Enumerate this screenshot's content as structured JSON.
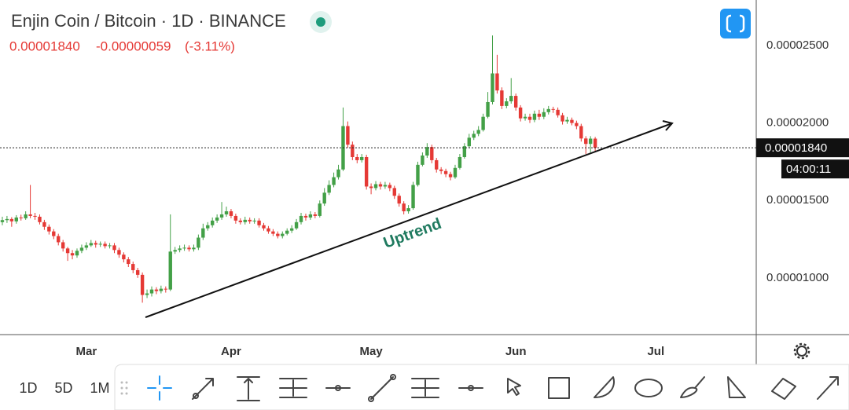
{
  "header": {
    "title": "Enjin Coin / Bitcoin · 1D · BINANCE",
    "price": "0.00001840",
    "change": "-0.00000059",
    "change_pct": "(-3.11%)"
  },
  "toolbar": {
    "intervals": [
      "1D",
      "5D",
      "1M"
    ]
  },
  "chart_data": {
    "type": "candlestick",
    "categories": [
      null,
      null,
      null,
      null,
      null,
      null,
      null,
      null,
      null,
      null,
      null,
      null,
      null,
      null,
      null,
      null,
      null,
      null,
      "Mar",
      null,
      null,
      null,
      null,
      null,
      null,
      null,
      null,
      null,
      null,
      null,
      null,
      null,
      null,
      null,
      null,
      null,
      null,
      null,
      null,
      null,
      null,
      null,
      null,
      null,
      null,
      null,
      null,
      null,
      null,
      "Apr",
      null,
      null,
      null,
      null,
      null,
      null,
      null,
      null,
      null,
      null,
      null,
      null,
      null,
      null,
      null,
      null,
      null,
      null,
      null,
      null,
      null,
      null,
      null,
      null,
      null,
      null,
      null,
      null,
      null,
      "May",
      null,
      null,
      null,
      null,
      null,
      null,
      null,
      null,
      null,
      null,
      null,
      null,
      null,
      null,
      null,
      null,
      null,
      null,
      null,
      null,
      null,
      null,
      null,
      null,
      null,
      null,
      null,
      null,
      null,
      null,
      "Jun",
      null,
      null,
      null,
      null,
      null,
      null,
      null,
      null,
      null,
      null,
      null,
      null,
      null,
      null,
      null,
      null,
      null,
      null,
      null,
      null,
      null,
      null,
      null,
      null,
      null,
      null,
      null,
      null,
      null,
      "Jul",
      null,
      null,
      null,
      null,
      null,
      null,
      null,
      null,
      null,
      null,
      null,
      null,
      null,
      null,
      null,
      null,
      null,
      null,
      null,
      null,
      null
    ],
    "open": [
      1.36e-05,
      1.373e-05,
      1.38e-05,
      1.365e-05,
      1.39e-05,
      1.385e-05,
      1.41e-05,
      1.4e-05,
      1.395e-05,
      1.36e-05,
      1.33e-05,
      1.3e-05,
      1.27e-05,
      1.23e-05,
      1.19e-05,
      1.16e-05,
      1.145e-05,
      1.175e-05,
      1.195e-05,
      1.21e-05,
      1.225e-05,
      1.215e-05,
      1.22e-05,
      1.205e-05,
      1.21e-05,
      1.18e-05,
      1.15e-05,
      1.12e-05,
      1.09e-05,
      1.05e-05,
      1.02e-05,
      8.9e-06,
      9e-06,
      9.25e-06,
      9.15e-06,
      9.3e-06,
      9.25e-06,
      1.17e-05,
      1.18e-05,
      1.19e-05,
      1.195e-05,
      1.185e-05,
      1.195e-05,
      1.26e-05,
      1.32e-05,
      1.34e-05,
      1.37e-05,
      1.39e-05,
      1.41e-05,
      1.43e-05,
      1.4e-05,
      1.37e-05,
      1.36e-05,
      1.375e-05,
      1.365e-05,
      1.37e-05,
      1.34e-05,
      1.32e-05,
      1.3e-05,
      1.285e-05,
      1.27e-05,
      1.285e-05,
      1.305e-05,
      1.32e-05,
      1.36e-05,
      1.4e-05,
      1.39e-05,
      1.41e-05,
      1.4e-05,
      1.48e-05,
      1.55e-05,
      1.6e-05,
      1.65e-05,
      1.7e-05,
      1.98e-05,
      1.86e-05,
      1.78e-05,
      1.76e-05,
      1.78e-05,
      1.59e-05,
      1.58e-05,
      1.605e-05,
      1.59e-05,
      1.6e-05,
      1.58e-05,
      1.53e-05,
      1.48e-05,
      1.43e-05,
      1.45e-05,
      1.6e-05,
      1.73e-05,
      1.79e-05,
      1.845e-05,
      1.76e-05,
      1.7e-05,
      1.69e-05,
      1.67e-05,
      1.65e-05,
      1.71e-05,
      1.78e-05,
      1.85e-05,
      1.905e-05,
      1.93e-05,
      1.955e-05,
      2.04e-05,
      2.135e-05,
      2.32e-05,
      2.21e-05,
      2.11e-05,
      2.14e-05,
      2.175e-05,
      2.1e-05,
      2.03e-05,
      2.04e-05,
      2.02e-05,
      2.06e-05,
      2.04e-05,
      2.07e-05,
      2.09e-05,
      2.085e-05,
      2.05e-05,
      2.01e-05,
      2.02e-05,
      2e-05,
      1.98e-05,
      1.9e-05,
      1.865e-05,
      1.899e-05,
      null,
      null,
      null,
      null,
      null,
      null,
      null,
      null,
      null,
      null,
      null,
      null,
      null,
      null,
      null,
      null,
      null,
      null,
      null,
      null,
      null,
      null,
      null,
      null,
      null,
      null,
      null,
      null,
      null,
      null,
      null,
      null,
      null,
      null
    ],
    "high": [
      1.395e-05,
      1.4e-05,
      1.392e-05,
      1.405e-05,
      1.408e-05,
      1.43e-05,
      1.6e-05,
      1.42e-05,
      1.41e-05,
      1.375e-05,
      1.345e-05,
      1.315e-05,
      1.285e-05,
      1.245e-05,
      1.2e-05,
      1.18e-05,
      1.19e-05,
      1.215e-05,
      1.23e-05,
      1.245e-05,
      1.24e-05,
      1.235e-05,
      1.235e-05,
      1.225e-05,
      1.225e-05,
      1.195e-05,
      1.165e-05,
      1.135e-05,
      1.105e-05,
      1.065e-05,
      1.035e-05,
      9.25e-06,
      9.45e-06,
      9.4e-06,
      9.5e-06,
      9.45e-06,
      1.41e-05,
      1.2e-05,
      1.21e-05,
      1.215e-05,
      1.21e-05,
      1.215e-05,
      1.28e-05,
      1.35e-05,
      1.36e-05,
      1.39e-05,
      1.41e-05,
      1.49e-05,
      1.46e-05,
      1.445e-05,
      1.415e-05,
      1.385e-05,
      1.395e-05,
      1.39e-05,
      1.385e-05,
      1.385e-05,
      1.355e-05,
      1.335e-05,
      1.315e-05,
      1.3e-05,
      1.3e-05,
      1.32e-05,
      1.34e-05,
      1.38e-05,
      1.42e-05,
      1.415e-05,
      1.43e-05,
      1.425e-05,
      1.5e-05,
      1.58e-05,
      1.63e-05,
      1.68e-05,
      1.73e-05,
      2.1e-05,
      2.01e-05,
      1.88e-05,
      1.8e-05,
      1.8e-05,
      1.795e-05,
      1.61e-05,
      1.625e-05,
      1.62e-05,
      1.62e-05,
      1.615e-05,
      1.595e-05,
      1.545e-05,
      1.495e-05,
      1.47e-05,
      1.62e-05,
      1.75e-05,
      1.81e-05,
      1.87e-05,
      1.86e-05,
      1.775e-05,
      1.715e-05,
      1.705e-05,
      1.685e-05,
      1.73e-05,
      1.8e-05,
      1.87e-05,
      1.93e-05,
      1.95e-05,
      1.98e-05,
      2.06e-05,
      2.2e-05,
      2.565e-05,
      2.44e-05,
      2.23e-05,
      2.16e-05,
      2.29e-05,
      2.19e-05,
      2.115e-05,
      2.06e-05,
      2.06e-05,
      2.08e-05,
      2.085e-05,
      2.095e-05,
      2.11e-05,
      2.105e-05,
      2.1e-05,
      2.065e-05,
      2.04e-05,
      2.035e-05,
      2.015e-05,
      1.995e-05,
      1.915e-05,
      1.915e-05,
      1.91e-05,
      null,
      null,
      null,
      null,
      null,
      null,
      null,
      null,
      null,
      null,
      null,
      null,
      null,
      null,
      null,
      null,
      null,
      null,
      null,
      null,
      null,
      null,
      null,
      null,
      null,
      null,
      null,
      null,
      null,
      null,
      null,
      null,
      null,
      null
    ],
    "low": [
      1.34e-05,
      1.355e-05,
      1.33e-05,
      1.35e-05,
      1.37e-05,
      1.375e-05,
      1.385e-05,
      1.375e-05,
      1.345e-05,
      1.31e-05,
      1.28e-05,
      1.25e-05,
      1.21e-05,
      1.17e-05,
      1.11e-05,
      1.12e-05,
      1.13e-05,
      1.16e-05,
      1.18e-05,
      1.2e-05,
      1.195e-05,
      1.2e-05,
      1.19e-05,
      1.19e-05,
      1.16e-05,
      1.13e-05,
      1.1e-05,
      1.07e-05,
      1.03e-05,
      1e-05,
      8.4e-06,
      8.7e-06,
      8.8e-06,
      8.95e-06,
      9e-06,
      9.05e-06,
      9.15e-06,
      1.155e-05,
      1.165e-05,
      1.175e-05,
      1.17e-05,
      1.17e-05,
      1.18e-05,
      1.245e-05,
      1.305e-05,
      1.325e-05,
      1.355e-05,
      1.375e-05,
      1.395e-05,
      1.385e-05,
      1.35e-05,
      1.345e-05,
      1.345e-05,
      1.35e-05,
      1.35e-05,
      1.325e-05,
      1.305e-05,
      1.285e-05,
      1.27e-05,
      1.255e-05,
      1.255e-05,
      1.275e-05,
      1.29e-05,
      1.31e-05,
      1.345e-05,
      1.37e-05,
      1.375e-05,
      1.385e-05,
      1.39e-05,
      1.465e-05,
      1.535e-05,
      1.585e-05,
      1.635e-05,
      1.69e-05,
      1.84e-05,
      1.76e-05,
      1.74e-05,
      1.745e-05,
      1.57e-05,
      1.54e-05,
      1.565e-05,
      1.57e-05,
      1.575e-05,
      1.56e-05,
      1.51e-05,
      1.46e-05,
      1.41e-05,
      1.415e-05,
      1.44e-05,
      1.59e-05,
      1.72e-05,
      1.775e-05,
      1.74e-05,
      1.68e-05,
      1.67e-05,
      1.65e-05,
      1.63e-05,
      1.64e-05,
      1.7e-05,
      1.77e-05,
      1.84e-05,
      1.89e-05,
      1.915e-05,
      1.945e-05,
      2.03e-05,
      2.12e-05,
      2.19e-05,
      2.09e-05,
      2.095e-05,
      2.125e-05,
      2.08e-05,
      2.01e-05,
      2.015e-05,
      2e-05,
      2.005e-05,
      2.02e-05,
      2.025e-05,
      2.055e-05,
      2.065e-05,
      2.035e-05,
      1.99e-05,
      1.995e-05,
      1.985e-05,
      1.96e-05,
      1.88e-05,
      1.8e-05,
      1.81e-05,
      1.81e-05,
      null,
      null,
      null,
      null,
      null,
      null,
      null,
      null,
      null,
      null,
      null,
      null,
      null,
      null,
      null,
      null,
      null,
      null,
      null,
      null,
      null,
      null,
      null,
      null,
      null,
      null,
      null,
      null,
      null,
      null,
      null,
      null,
      null,
      null
    ],
    "close": [
      1.373e-05,
      1.38e-05,
      1.365e-05,
      1.39e-05,
      1.385e-05,
      1.41e-05,
      1.4e-05,
      1.395e-05,
      1.36e-05,
      1.33e-05,
      1.3e-05,
      1.27e-05,
      1.23e-05,
      1.19e-05,
      1.16e-05,
      1.145e-05,
      1.175e-05,
      1.195e-05,
      1.21e-05,
      1.225e-05,
      1.215e-05,
      1.22e-05,
      1.205e-05,
      1.21e-05,
      1.18e-05,
      1.15e-05,
      1.12e-05,
      1.09e-05,
      1.05e-05,
      1.02e-05,
      8.9e-06,
      9e-06,
      9.25e-06,
      9.15e-06,
      9.3e-06,
      9.25e-06,
      1.17e-05,
      1.18e-05,
      1.19e-05,
      1.195e-05,
      1.185e-05,
      1.195e-05,
      1.26e-05,
      1.32e-05,
      1.34e-05,
      1.37e-05,
      1.39e-05,
      1.41e-05,
      1.43e-05,
      1.4e-05,
      1.37e-05,
      1.36e-05,
      1.375e-05,
      1.365e-05,
      1.37e-05,
      1.34e-05,
      1.32e-05,
      1.3e-05,
      1.285e-05,
      1.27e-05,
      1.285e-05,
      1.305e-05,
      1.32e-05,
      1.36e-05,
      1.4e-05,
      1.39e-05,
      1.41e-05,
      1.4e-05,
      1.48e-05,
      1.55e-05,
      1.6e-05,
      1.65e-05,
      1.7e-05,
      1.98e-05,
      1.86e-05,
      1.78e-05,
      1.76e-05,
      1.78e-05,
      1.59e-05,
      1.58e-05,
      1.605e-05,
      1.59e-05,
      1.6e-05,
      1.58e-05,
      1.53e-05,
      1.48e-05,
      1.43e-05,
      1.45e-05,
      1.6e-05,
      1.73e-05,
      1.79e-05,
      1.845e-05,
      1.76e-05,
      1.7e-05,
      1.69e-05,
      1.67e-05,
      1.65e-05,
      1.71e-05,
      1.78e-05,
      1.85e-05,
      1.905e-05,
      1.93e-05,
      1.955e-05,
      2.04e-05,
      2.135e-05,
      2.32e-05,
      2.21e-05,
      2.11e-05,
      2.14e-05,
      2.175e-05,
      2.1e-05,
      2.03e-05,
      2.04e-05,
      2.02e-05,
      2.06e-05,
      2.04e-05,
      2.07e-05,
      2.09e-05,
      2.085e-05,
      2.05e-05,
      2.01e-05,
      2.02e-05,
      2e-05,
      1.98e-05,
      1.9e-05,
      1.865e-05,
      1.899e-05,
      1.84e-05,
      null,
      null,
      null,
      null,
      null,
      null,
      null,
      null,
      null,
      null,
      null,
      null,
      null,
      null,
      null,
      null,
      null,
      null,
      null,
      null,
      null,
      null,
      null,
      null,
      null,
      null,
      null,
      null,
      null,
      null,
      null,
      null,
      null,
      null
    ],
    "up_color": "#43a047",
    "down_color": "#e53935",
    "ylim": [
      6.34e-06,
      2.794e-05
    ],
    "yticks": [
      {
        "value": 1e-05,
        "label": "0.00001000"
      },
      {
        "value": 1.5e-05,
        "label": "0.00001500"
      },
      {
        "value": 2e-05,
        "label": "0.00002000"
      },
      {
        "value": 2.5e-05,
        "label": "0.00002500"
      }
    ],
    "grid": false,
    "annotation": "Uptrend",
    "last_price_label": "0.00001840",
    "countdown": "04:00:11"
  }
}
